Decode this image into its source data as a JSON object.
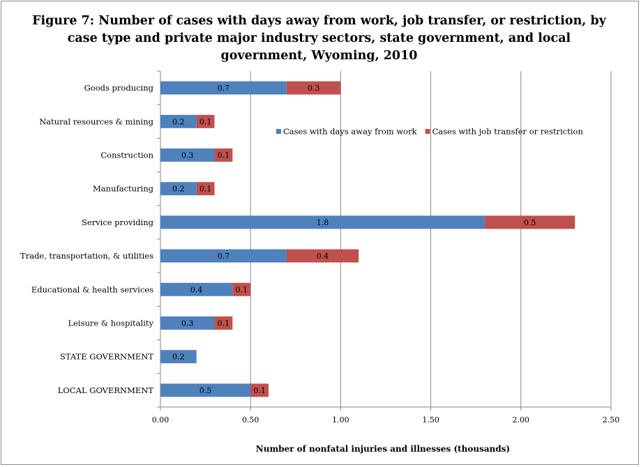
{
  "chart_data": {
    "type": "bar",
    "orientation": "horizontal",
    "stacked": true,
    "title": "Figure 7: Number of cases with days away from work, job transfer, or restriction, by case type and private major industry sectors, state government, and local government, Wyoming, 2010",
    "xlabel": "Number of nonfatal injuries and illnesses (thousands)",
    "ylabel": "",
    "xlim": [
      0,
      2.5
    ],
    "xticks": [
      "0.00",
      "0.50",
      "1.00",
      "1.50",
      "2.00",
      "2.50"
    ],
    "grid": "vertical",
    "legend": "top-right",
    "categories": [
      "Goods producing",
      "Natural resources & mining",
      "Construction",
      "Manufacturing",
      "Service providing",
      "Trade, transportation, & utilities",
      "Educational & health services",
      "Leisure & hospitality",
      "STATE GOVERNMENT",
      "LOCAL GOVERNMENT"
    ],
    "series": [
      {
        "name": "Cases with days away from work",
        "color": "#4f81bd",
        "values": [
          0.7,
          0.2,
          0.3,
          0.2,
          1.8,
          0.7,
          0.4,
          0.3,
          0.2,
          0.5
        ],
        "labels": [
          "0.7",
          "0.2",
          "0.3",
          "0.2",
          "1.8",
          "0.7",
          "0.4",
          "0.3",
          "0.2",
          "0.5"
        ]
      },
      {
        "name": "Cases with job transfer or restriction",
        "color": "#c0504d",
        "values": [
          0.3,
          0.1,
          0.1,
          0.1,
          0.5,
          0.4,
          0.1,
          0.1,
          0,
          0.1
        ],
        "labels": [
          "0.3",
          "0.1",
          "0.1",
          "0.1",
          "0.5",
          "0.4",
          "0.1",
          "0.1",
          "",
          "0.1"
        ]
      }
    ]
  }
}
